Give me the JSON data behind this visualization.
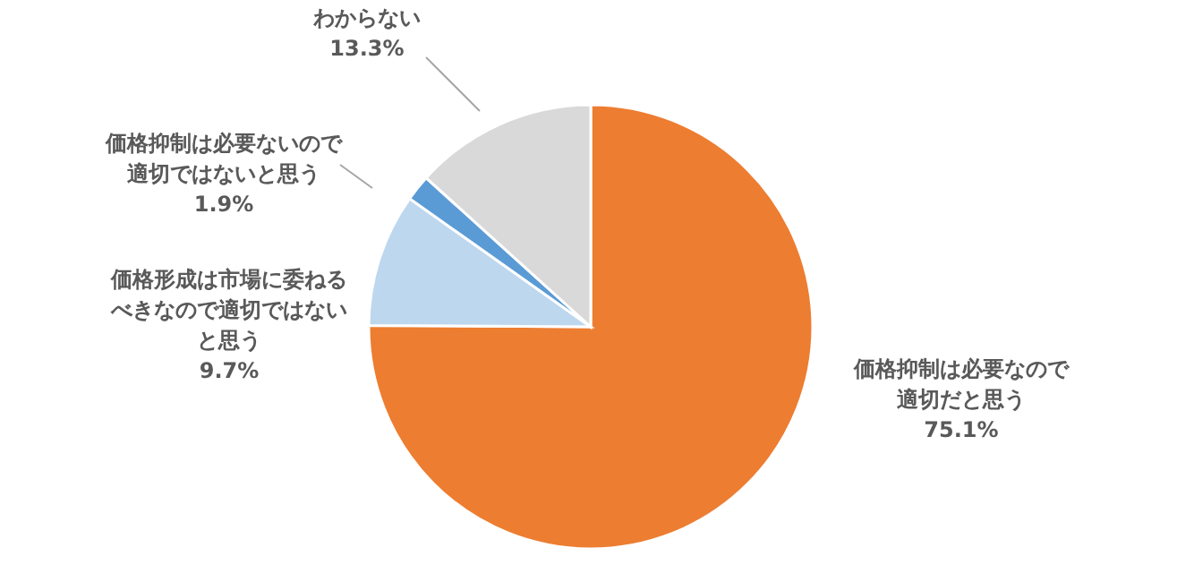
{
  "chart_data": {
    "type": "pie",
    "categories": [
      "価格抑制は必要なので適切だと思う",
      "価格形成は市場に委ねるべきなので適切ではないと思う",
      "価格抑制は必要ないので適切ではないと思う",
      "わからない"
    ],
    "values": [
      75.1,
      9.7,
      1.9,
      13.3
    ],
    "value_labels": [
      "75.1%",
      "9.7%",
      "1.9%",
      "13.3%"
    ],
    "colors": [
      "#ed7d31",
      "#bdd7ee",
      "#5b9bd5",
      "#d9d9d9"
    ]
  }
}
